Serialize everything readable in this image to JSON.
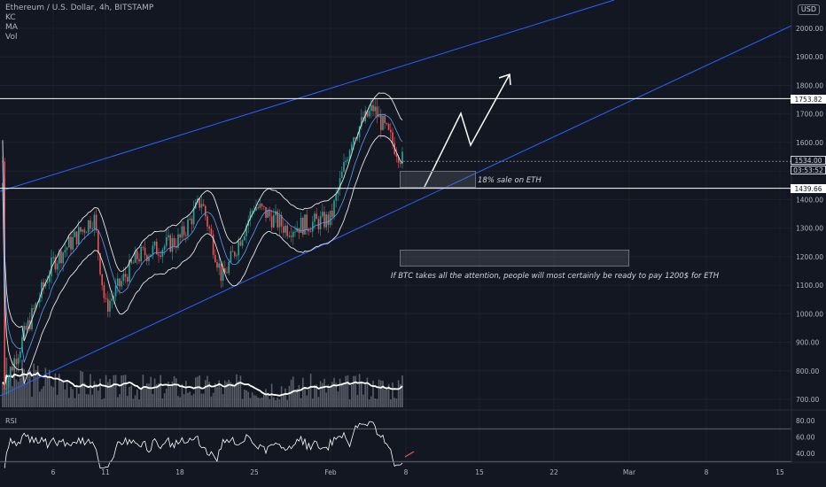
{
  "legend": {
    "title": "Ethereum / U.S. Dollar, 4h, BITSTAMP",
    "indicators": [
      "KC",
      "MA",
      "Vol"
    ]
  },
  "currency_label": "USD",
  "price_axis": {
    "ticks": [
      "2000.00",
      "1900.00",
      "1800.00",
      "1700.00",
      "1600.00",
      "1500.00",
      "1400.00",
      "1300.00",
      "1200.00",
      "1100.00",
      "1000.00",
      "900.00",
      "800.00",
      "700.00"
    ],
    "tick_values": [
      2000,
      1900,
      1800,
      1700,
      1600,
      1500,
      1400,
      1300,
      1200,
      1100,
      1000,
      900,
      800,
      700
    ]
  },
  "price_tags": {
    "resistance": "1753.82",
    "last_price": "1534.00",
    "countdown": "03:53:52",
    "support": "1439.66"
  },
  "rsi": {
    "label": "RSI",
    "ticks": [
      "80.00",
      "60.00",
      "40.00"
    ],
    "tick_values": [
      80,
      60,
      40
    ],
    "bands": [
      70,
      30
    ]
  },
  "time_axis": {
    "labels": [
      "6",
      "11",
      "18",
      "25",
      "Feb",
      "8",
      "15",
      "22",
      "Mar",
      "8",
      "15"
    ]
  },
  "annotations": {
    "sale": "18% sale on ETH",
    "scenario": "If BTC takes all the attention, people will most certainly be ready to pay 1200$ for ETH"
  },
  "colors": {
    "background": "#131722",
    "channel": "#2962ff",
    "up": "#26a69a",
    "down": "#ef5350",
    "level_line": "#ffffff",
    "text": "#d1d4dc"
  },
  "chart_data": {
    "type": "candlestick",
    "symbol": "Ethereum / U.S. Dollar",
    "interval": "4h",
    "exchange": "BITSTAMP",
    "ylim": [
      680,
      2040
    ],
    "horizontal_levels": [
      1753.82,
      1439.66
    ],
    "last_price": 1534.0,
    "zones": [
      {
        "label": "18% sale on ETH",
        "low": 1440,
        "high": 1500
      },
      {
        "label": "If BTC takes all the attention, people will most certainly be ready to pay 1200$ for ETH",
        "low": 1165,
        "high": 1225
      }
    ],
    "price_path": [
      {
        "date": "Jan 3",
        "price": 750
      },
      {
        "date": "Jan 6",
        "price": 1180
      },
      {
        "date": "Jan 10",
        "price": 1340
      },
      {
        "date": "Jan 11",
        "price": 1020
      },
      {
        "date": "Jan 14",
        "price": 1200
      },
      {
        "date": "Jan 18",
        "price": 1260
      },
      {
        "date": "Jan 20",
        "price": 1400
      },
      {
        "date": "Jan 22",
        "price": 1120
      },
      {
        "date": "Jan 25",
        "price": 1380
      },
      {
        "date": "Jan 28",
        "price": 1300
      },
      {
        "date": "Feb 1",
        "price": 1330
      },
      {
        "date": "Feb 3",
        "price": 1620
      },
      {
        "date": "Feb 5",
        "price": 1720
      },
      {
        "date": "Feb 7",
        "price": 1534
      }
    ]
  }
}
